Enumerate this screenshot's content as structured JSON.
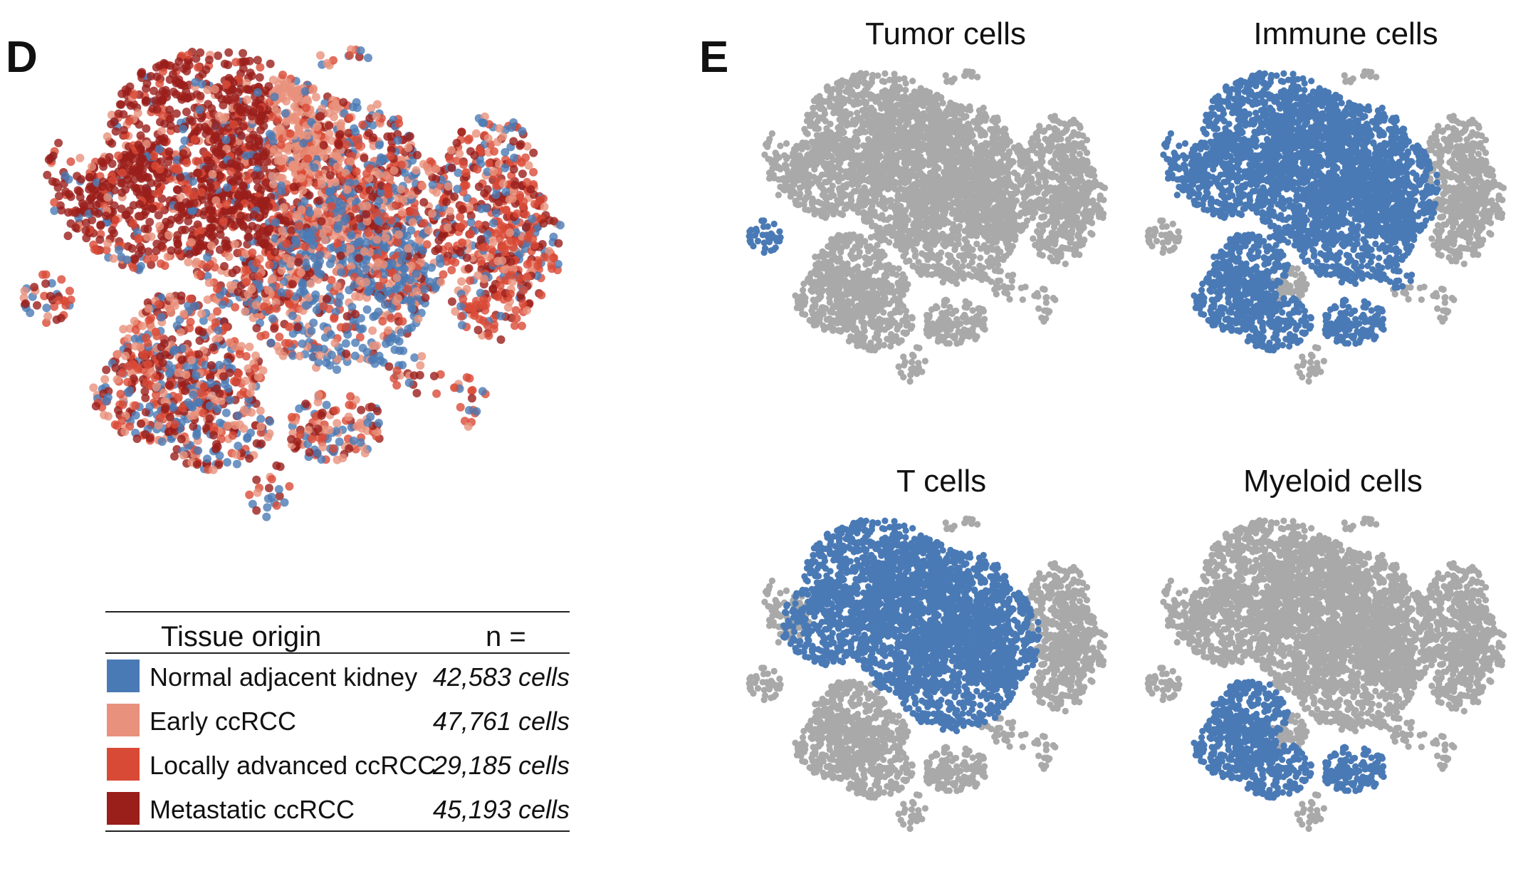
{
  "panel_d": {
    "letter": "D",
    "legend": {
      "header_origin": "Tissue origin",
      "header_n": "n =",
      "rows": [
        {
          "label": "Normal adjacent kidney",
          "count": "42,583 cells",
          "color": "#4a7ab5"
        },
        {
          "label": "Early ccRCC",
          "count": "47,761 cells",
          "color": "#e8917c"
        },
        {
          "label": "Locally advanced ccRCC",
          "count": "29,185 cells",
          "color": "#d94a36"
        },
        {
          "label": "Metastatic ccRCC",
          "count": "45,193 cells",
          "color": "#9a1e1a"
        }
      ]
    }
  },
  "panel_e": {
    "letter": "E",
    "highlight_color": "#4a7ab5",
    "background_color": "#a9a9a9",
    "subplots": [
      {
        "title": "Tumor cells",
        "highlight": "tumor"
      },
      {
        "title": "Immune cells",
        "highlight": "immune"
      },
      {
        "title": "T cells",
        "highlight": "tcells"
      },
      {
        "title": "Myeloid cells",
        "highlight": "myeloid"
      }
    ]
  }
}
